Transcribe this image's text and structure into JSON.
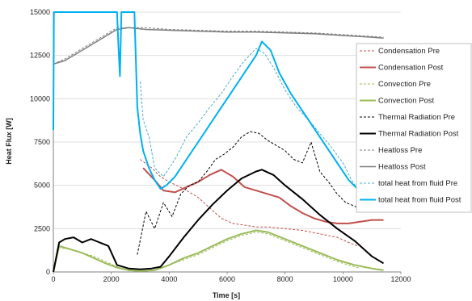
{
  "chart_data": {
    "type": "line",
    "xlabel": "Time [s]",
    "ylabel": "Heat Flux [W]",
    "xlim": [
      0,
      12000
    ],
    "ylim": [
      0,
      15000
    ],
    "x_ticks": [
      "0",
      "2000",
      "4000",
      "6000",
      "8000",
      "10000",
      "12000"
    ],
    "y_ticks": [
      "0",
      "2500",
      "5000",
      "7500",
      "10000",
      "12500",
      "15000"
    ],
    "grid": true,
    "legend_position": "right",
    "series": [
      {
        "name": "Condensation Pre",
        "color": "#c0504d",
        "dash": true,
        "width": 1,
        "x": [
          3000,
          3400,
          3700,
          4000,
          4500,
          5000,
          5400,
          5800,
          6200,
          6600,
          7000,
          7400,
          8000,
          8600,
          9200,
          9800,
          10200,
          10500
        ],
        "y": [
          6500,
          6000,
          5500,
          5200,
          4800,
          4300,
          3700,
          3100,
          2800,
          2700,
          2600,
          2600,
          2500,
          2400,
          2200,
          2000,
          1700,
          1500
        ]
      },
      {
        "name": "Condensation Post",
        "color": "#c0504d",
        "dash": false,
        "width": 2,
        "x": [
          3100,
          3500,
          3800,
          4200,
          4600,
          5000,
          5400,
          5800,
          6200,
          6600,
          7000,
          7400,
          7800,
          8200,
          8600,
          9000,
          9400,
          9800,
          10200,
          10600,
          11000,
          11400
        ],
        "y": [
          6000,
          5300,
          4700,
          4600,
          4900,
          5200,
          5600,
          5900,
          5500,
          4900,
          4700,
          4500,
          4300,
          3800,
          3400,
          3100,
          2900,
          2800,
          2800,
          2900,
          3000,
          3000
        ]
      },
      {
        "name": "Convection Pre",
        "color": "#9bbb59",
        "dash": true,
        "width": 1,
        "x": [
          0,
          200,
          600,
          1000,
          1400,
          1800,
          2200,
          2600,
          3000,
          3500,
          4000,
          4500,
          5000,
          5500,
          6000,
          6500,
          7000,
          7400,
          8000,
          8600,
          9200,
          9800,
          10400,
          10600
        ],
        "y": [
          0,
          1400,
          1300,
          1100,
          900,
          600,
          300,
          100,
          50,
          100,
          400,
          700,
          1000,
          1400,
          1800,
          2100,
          2300,
          2200,
          1800,
          1400,
          1000,
          600,
          300,
          200
        ]
      },
      {
        "name": "Convection Post",
        "color": "#9bbb59",
        "dash": false,
        "width": 2,
        "x": [
          0,
          200,
          600,
          1000,
          1400,
          1800,
          2200,
          2600,
          3000,
          3500,
          4000,
          4500,
          5000,
          5500,
          6000,
          6500,
          7000,
          7400,
          8000,
          8600,
          9200,
          9800,
          10400,
          11000,
          11400
        ],
        "y": [
          0,
          1500,
          1300,
          1100,
          800,
          500,
          250,
          100,
          50,
          100,
          400,
          800,
          1100,
          1500,
          1900,
          2200,
          2400,
          2300,
          1900,
          1500,
          1100,
          700,
          400,
          200,
          100
        ]
      },
      {
        "name": "Thermal Radiation Pre",
        "color": "#000000",
        "dash": true,
        "width": 1,
        "x": [
          2900,
          3200,
          3500,
          3800,
          4100,
          4400,
          4700,
          5000,
          5300,
          5600,
          5900,
          6200,
          6500,
          6800,
          7100,
          7400,
          7700,
          8000,
          8300,
          8600,
          8900,
          9200,
          9500,
          9800,
          10100,
          10400,
          10600
        ],
        "y": [
          1000,
          3500,
          2500,
          4000,
          3200,
          4500,
          5000,
          5200,
          5800,
          6500,
          6800,
          7200,
          7800,
          8100,
          8000,
          7600,
          7300,
          7000,
          6500,
          6300,
          7500,
          5800,
          5200,
          4500,
          4000,
          3800,
          3600
        ]
      },
      {
        "name": "Thermal Radiation Post",
        "color": "#000000",
        "dash": false,
        "width": 2,
        "x": [
          0,
          200,
          400,
          700,
          1000,
          1300,
          1600,
          1900,
          2200,
          2600,
          3000,
          3400,
          3700,
          4000,
          4500,
          5000,
          5500,
          6000,
          6500,
          7000,
          7200,
          7600,
          8000,
          8600,
          9200,
          9800,
          10400,
          11000,
          11400
        ],
        "y": [
          0,
          1700,
          1900,
          2000,
          1700,
          1900,
          1700,
          1500,
          400,
          200,
          150,
          200,
          300,
          900,
          2000,
          3000,
          3900,
          4700,
          5400,
          5800,
          5900,
          5600,
          5000,
          4200,
          3300,
          2500,
          1800,
          900,
          500
        ]
      },
      {
        "name": "Heatloss Pre",
        "color": "#7f7f7f",
        "dash": true,
        "width": 1,
        "x": [
          0,
          400,
          900,
          1400,
          1900,
          2200,
          2600,
          3200,
          4000,
          5000,
          6000,
          7000,
          8000,
          9000,
          10000,
          11000,
          11400
        ],
        "y": [
          12000,
          12300,
          12800,
          13300,
          13800,
          14100,
          14100,
          14100,
          14000,
          13950,
          13900,
          13900,
          13850,
          13800,
          13700,
          13600,
          13550
        ]
      },
      {
        "name": "Heatloss Post",
        "color": "#7f7f7f",
        "dash": false,
        "width": 1.5,
        "x": [
          0,
          400,
          900,
          1400,
          1900,
          2200,
          2600,
          3200,
          4000,
          5000,
          6000,
          7000,
          8000,
          9000,
          10000,
          11000,
          11400
        ],
        "y": [
          12000,
          12200,
          12700,
          13200,
          13700,
          14000,
          14100,
          14000,
          13950,
          13900,
          13850,
          13850,
          13800,
          13750,
          13650,
          13550,
          13500
        ]
      },
      {
        "name": "total heat from fluid Pre",
        "color": "#4bacc6",
        "dash": true,
        "width": 1,
        "x": [
          3000,
          3100,
          3300,
          3500,
          3800,
          4200,
          4600,
          5000,
          5400,
          5800,
          6200,
          6600,
          7000,
          7300,
          7600,
          8000,
          8400,
          8800,
          9200,
          9600,
          10000,
          10300,
          10500
        ],
        "y": [
          11000,
          8800,
          7800,
          6000,
          5500,
          6500,
          7800,
          8600,
          9500,
          10300,
          11300,
          12200,
          12900,
          12600,
          11800,
          10500,
          9500,
          8800,
          8000,
          7200,
          6300,
          5300,
          4800
        ]
      },
      {
        "name": "total heat from fluid Post",
        "color": "#00b0f0",
        "dash": false,
        "width": 2,
        "x": [
          0,
          20,
          40,
          60,
          2200,
          2250,
          2300,
          2350,
          2800,
          2900,
          3000,
          3100,
          3300,
          3500,
          3700,
          3900,
          4200,
          4600,
          5000,
          5400,
          5800,
          6200,
          6600,
          7000,
          7200,
          7500,
          7800,
          8200,
          8600,
          9000,
          9400,
          9800,
          10200,
          10500
        ],
        "y": [
          8200,
          15000,
          15000,
          15000,
          15000,
          13000,
          11300,
          15000,
          15000,
          9500,
          8000,
          7000,
          6000,
          5300,
          4800,
          5000,
          5500,
          6500,
          7500,
          8500,
          9500,
          10500,
          11500,
          12500,
          13300,
          12800,
          11500,
          10300,
          9300,
          8300,
          7300,
          6300,
          5300,
          4800
        ]
      }
    ]
  }
}
